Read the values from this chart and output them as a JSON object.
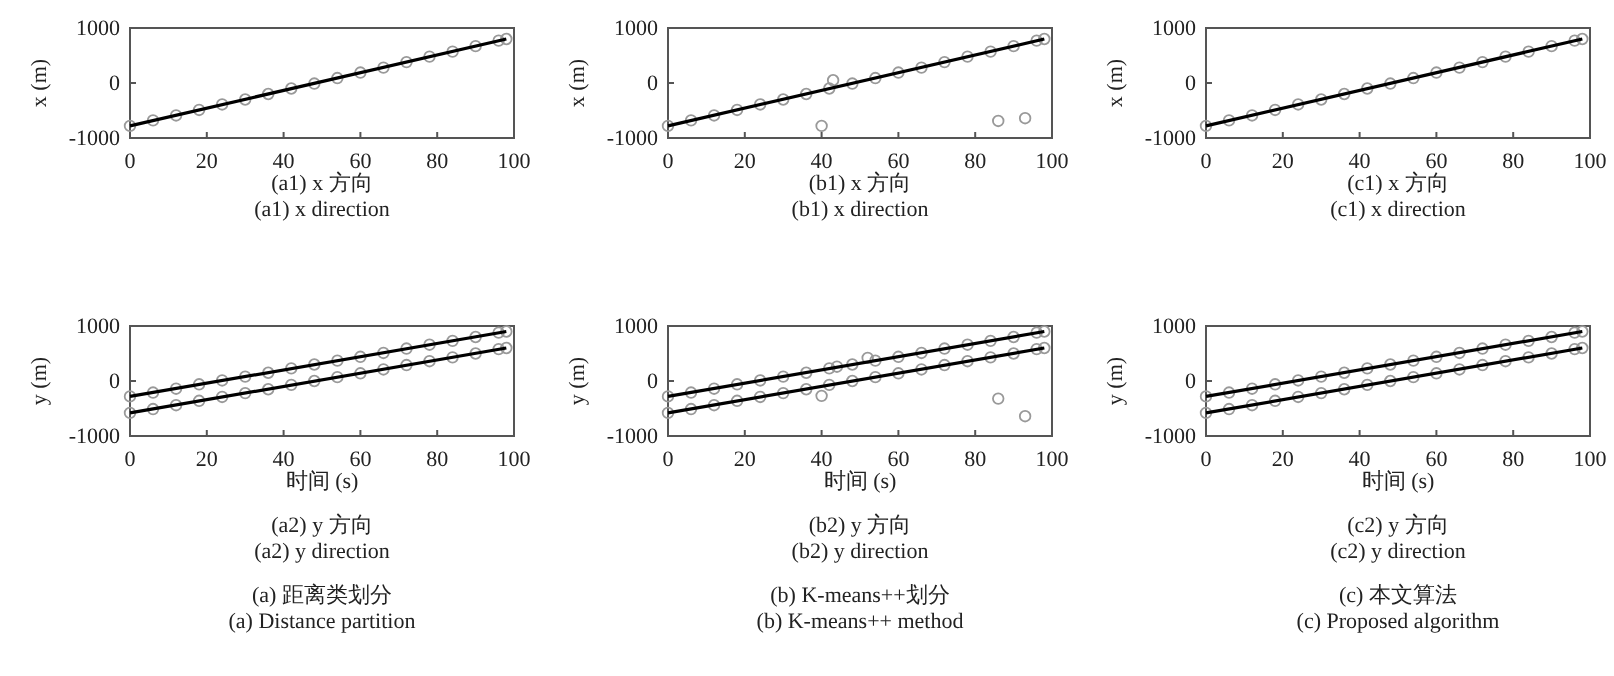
{
  "chart_data": [
    {
      "type": "line",
      "title": "(a1) x 方向",
      "subtitle": "(a1) x direction",
      "ylabel": "x (m)",
      "xlim": [
        0,
        100
      ],
      "ylim": [
        -1000,
        1000
      ],
      "xticks": [
        0,
        20,
        40,
        60,
        80,
        100
      ],
      "yticks": [
        -1000,
        0,
        1000
      ],
      "series": [
        {
          "type": "line",
          "color": "#000000",
          "x": [
            0,
            98
          ],
          "values": [
            -780,
            800
          ]
        },
        {
          "type": "scatter",
          "marker": "circle",
          "color": "#999999",
          "x": [
            0,
            6,
            12,
            18,
            24,
            30,
            36,
            42,
            48,
            54,
            60,
            66,
            72,
            78,
            84,
            90,
            96,
            98
          ],
          "values": [
            -780,
            -680,
            -590,
            -490,
            -390,
            -300,
            -200,
            -100,
            -10,
            90,
            190,
            280,
            380,
            480,
            570,
            670,
            770,
            800
          ]
        }
      ]
    },
    {
      "type": "line",
      "title": "(b1) x 方向",
      "subtitle": "(b1) x direction",
      "ylabel": "x (m)",
      "xlim": [
        0,
        100
      ],
      "ylim": [
        -1000,
        1000
      ],
      "xticks": [
        0,
        20,
        40,
        60,
        80,
        100
      ],
      "yticks": [
        -1000,
        0,
        1000
      ],
      "series": [
        {
          "type": "line",
          "color": "#000000",
          "x": [
            0,
            98
          ],
          "values": [
            -780,
            800
          ]
        },
        {
          "type": "scatter",
          "marker": "circle",
          "color": "#999999",
          "x": [
            0,
            6,
            12,
            18,
            24,
            30,
            36,
            42,
            48,
            54,
            60,
            66,
            72,
            78,
            84,
            90,
            96,
            98,
            40,
            43,
            86,
            93
          ],
          "values": [
            -780,
            -680,
            -590,
            -490,
            -390,
            -300,
            -200,
            -100,
            -10,
            90,
            190,
            280,
            380,
            480,
            570,
            670,
            770,
            800,
            -780,
            50,
            -690,
            -640
          ]
        }
      ]
    },
    {
      "type": "line",
      "title": "(c1) x 方向",
      "subtitle": "(c1) x direction",
      "ylabel": "x (m)",
      "xlim": [
        0,
        100
      ],
      "ylim": [
        -1000,
        1000
      ],
      "xticks": [
        0,
        20,
        40,
        60,
        80,
        100
      ],
      "yticks": [
        -1000,
        0,
        1000
      ],
      "series": [
        {
          "type": "line",
          "color": "#000000",
          "x": [
            0,
            98
          ],
          "values": [
            -780,
            800
          ]
        },
        {
          "type": "scatter",
          "marker": "circle",
          "color": "#999999",
          "x": [
            0,
            6,
            12,
            18,
            24,
            30,
            36,
            42,
            48,
            54,
            60,
            66,
            72,
            78,
            84,
            90,
            96,
            98
          ],
          "values": [
            -780,
            -680,
            -590,
            -490,
            -390,
            -300,
            -200,
            -100,
            -10,
            90,
            190,
            280,
            380,
            480,
            570,
            670,
            770,
            800
          ]
        }
      ]
    },
    {
      "type": "line",
      "title": "(a2) y 方向",
      "subtitle": "(a2) y direction",
      "xlabel": "时间 (s)",
      "ylabel": "y (m)",
      "annotations": [
        "(a) 距离类划分",
        "(a) Distance partition"
      ],
      "xlim": [
        0,
        100
      ],
      "ylim": [
        -1000,
        1000
      ],
      "xticks": [
        0,
        20,
        40,
        60,
        80,
        100
      ],
      "yticks": [
        -1000,
        0,
        1000
      ],
      "series": [
        {
          "type": "line",
          "color": "#000000",
          "x": [
            0,
            98
          ],
          "values": [
            -280,
            900
          ]
        },
        {
          "type": "line",
          "color": "#000000",
          "x": [
            0,
            98
          ],
          "values": [
            -580,
            600
          ]
        },
        {
          "type": "scatter",
          "marker": "circle",
          "color": "#999999",
          "x": [
            0,
            6,
            12,
            18,
            24,
            30,
            36,
            42,
            48,
            54,
            60,
            66,
            72,
            78,
            84,
            90,
            96,
            98
          ],
          "values": [
            -280,
            -210,
            -140,
            -60,
            10,
            80,
            150,
            230,
            300,
            370,
            440,
            510,
            590,
            660,
            730,
            800,
            880,
            900
          ]
        },
        {
          "type": "scatter",
          "marker": "circle",
          "color": "#999999",
          "x": [
            0,
            6,
            12,
            18,
            24,
            30,
            36,
            42,
            48,
            54,
            60,
            66,
            72,
            78,
            84,
            90,
            96,
            98
          ],
          "values": [
            -580,
            -510,
            -440,
            -360,
            -290,
            -220,
            -150,
            -70,
            0,
            70,
            140,
            210,
            290,
            360,
            430,
            500,
            580,
            600
          ]
        }
      ]
    },
    {
      "type": "line",
      "title": "(b2) y 方向",
      "subtitle": "(b2) y direction",
      "xlabel": "时间 (s)",
      "ylabel": "y (m)",
      "annotations": [
        "(b) K-means++划分",
        "(b) K-means++ method"
      ],
      "xlim": [
        0,
        100
      ],
      "ylim": [
        -1000,
        1000
      ],
      "xticks": [
        0,
        20,
        40,
        60,
        80,
        100
      ],
      "yticks": [
        -1000,
        0,
        1000
      ],
      "series": [
        {
          "type": "line",
          "color": "#000000",
          "x": [
            0,
            98
          ],
          "values": [
            -280,
            900
          ]
        },
        {
          "type": "line",
          "color": "#000000",
          "x": [
            0,
            98
          ],
          "values": [
            -580,
            600
          ]
        },
        {
          "type": "scatter",
          "marker": "circle",
          "color": "#999999",
          "x": [
            0,
            6,
            12,
            18,
            24,
            30,
            36,
            42,
            48,
            54,
            60,
            66,
            72,
            78,
            84,
            90,
            96,
            98,
            44,
            52
          ],
          "values": [
            -280,
            -210,
            -140,
            -60,
            10,
            80,
            150,
            230,
            300,
            370,
            440,
            510,
            590,
            660,
            730,
            800,
            880,
            900,
            260,
            420
          ]
        },
        {
          "type": "scatter",
          "marker": "circle",
          "color": "#999999",
          "x": [
            0,
            6,
            12,
            18,
            24,
            30,
            36,
            42,
            48,
            54,
            60,
            66,
            72,
            78,
            84,
            90,
            96,
            98,
            40,
            86,
            93
          ],
          "values": [
            -580,
            -510,
            -440,
            -360,
            -290,
            -220,
            -150,
            -70,
            0,
            70,
            140,
            210,
            290,
            360,
            430,
            500,
            580,
            600,
            -270,
            -320,
            -640
          ]
        }
      ]
    },
    {
      "type": "line",
      "title": "(c2) y 方向",
      "subtitle": "(c2) y direction",
      "xlabel": "时间 (s)",
      "ylabel": "y (m)",
      "annotations": [
        "(c) 本文算法",
        "(c) Proposed algorithm"
      ],
      "xlim": [
        0,
        100
      ],
      "ylim": [
        -1000,
        1000
      ],
      "xticks": [
        0,
        20,
        40,
        60,
        80,
        100
      ],
      "yticks": [
        -1000,
        0,
        1000
      ],
      "series": [
        {
          "type": "line",
          "color": "#000000",
          "x": [
            0,
            98
          ],
          "values": [
            -280,
            900
          ]
        },
        {
          "type": "line",
          "color": "#000000",
          "x": [
            0,
            98
          ],
          "values": [
            -580,
            600
          ]
        },
        {
          "type": "scatter",
          "marker": "circle",
          "color": "#999999",
          "x": [
            0,
            6,
            12,
            18,
            24,
            30,
            36,
            42,
            48,
            54,
            60,
            66,
            72,
            78,
            84,
            90,
            96,
            98
          ],
          "values": [
            -280,
            -210,
            -140,
            -60,
            10,
            80,
            150,
            230,
            300,
            370,
            440,
            510,
            590,
            660,
            730,
            800,
            880,
            900
          ]
        },
        {
          "type": "scatter",
          "marker": "circle",
          "color": "#999999",
          "x": [
            0,
            6,
            12,
            18,
            24,
            30,
            36,
            42,
            48,
            54,
            60,
            66,
            72,
            78,
            84,
            90,
            96,
            98
          ],
          "values": [
            -580,
            -510,
            -440,
            -360,
            -290,
            -220,
            -150,
            -70,
            0,
            70,
            140,
            210,
            290,
            360,
            430,
            500,
            580,
            600
          ]
        }
      ]
    }
  ]
}
